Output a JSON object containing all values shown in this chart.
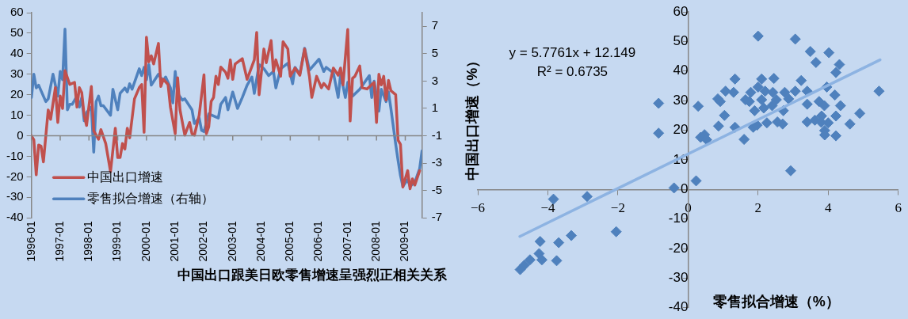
{
  "chart_data": [
    {
      "type": "line",
      "title": "中国出口跟美日欧零售增速呈强烈正相关关系",
      "xlim": [
        "1996-01",
        "2009-08"
      ],
      "xticks": [
        "1996-01",
        "1997-01",
        "1998-01",
        "1999-01",
        "2000-01",
        "2001-01",
        "2002-01",
        "2003-01",
        "2004-01",
        "2005-01",
        "2006-01",
        "2007-01",
        "2008-01",
        "2009-01"
      ],
      "ylim": [
        -40,
        60
      ],
      "yticks": [
        -40,
        -30,
        -20,
        -10,
        0,
        10,
        20,
        30,
        40,
        50,
        60
      ],
      "y2lim": [
        -7,
        8
      ],
      "y2ticks": [
        -7,
        -5,
        -3,
        -1,
        1,
        3,
        5,
        7
      ],
      "grid": false,
      "ref_lines": [
        {
          "axis": "y",
          "value": 0,
          "color": "#868686"
        }
      ],
      "legend": "bottom left",
      "marker": "none",
      "line_style": "solid",
      "series": [
        {
          "name": "中国出口增速",
          "color": "#c0504d",
          "x": [
            "1996-01",
            "1996-02",
            "1996-03",
            "1996-04",
            "1996-05",
            "1996-06",
            "1996-08",
            "1996-09",
            "1996-11",
            "1996-12",
            "1997-01",
            "1997-02",
            "1997-03",
            "1997-05",
            "1997-07",
            "1997-08",
            "1997-09",
            "1997-10",
            "1997-11",
            "1997-12",
            "1998-02",
            "1998-03",
            "1998-05",
            "1998-06",
            "1998-08",
            "1998-10",
            "1998-12",
            "1999-01",
            "1999-02",
            "1999-03",
            "1999-04",
            "1999-05",
            "1999-06",
            "1999-08",
            "1999-10",
            "1999-11",
            "1999-12",
            "2000-01",
            "2000-02",
            "2000-03",
            "2000-04",
            "2000-06",
            "2000-07",
            "2000-08",
            "2000-10",
            "2000-11",
            "2001-01",
            "2001-02",
            "2001-03",
            "2001-05",
            "2001-07",
            "2001-08",
            "2001-09",
            "2001-11",
            "2002-01",
            "2002-02",
            "2002-03",
            "2002-04",
            "2002-05",
            "2002-06",
            "2002-07",
            "2002-08",
            "2002-10",
            "2002-11",
            "2002-12",
            "2003-01",
            "2003-02",
            "2003-05",
            "2003-07",
            "2003-10",
            "2003-11",
            "2003-12",
            "2004-02",
            "2004-03",
            "2004-05",
            "2004-06",
            "2004-07",
            "2004-09",
            "2004-10",
            "2004-12",
            "2005-01",
            "2005-03",
            "2005-05",
            "2005-07",
            "2005-09",
            "2005-10",
            "2005-12",
            "2006-02",
            "2006-03",
            "2006-05",
            "2006-07",
            "2006-09",
            "2006-10",
            "2006-11",
            "2007-01",
            "2007-02",
            "2007-03",
            "2007-04",
            "2007-06",
            "2007-07",
            "2007-09",
            "2007-12",
            "2008-01",
            "2008-02",
            "2008-03",
            "2008-04",
            "2008-05",
            "2008-06",
            "2008-07",
            "2008-09",
            "2008-10",
            "2008-11",
            "2008-12",
            "2009-02",
            "2009-03",
            "2009-04",
            "2009-05",
            "2009-07"
          ],
          "values": [
            0,
            -2,
            -19,
            -4.5,
            -5,
            -12.7,
            12.6,
            8,
            23.5,
            6.5,
            19.4,
            13.3,
            31.7,
            25,
            26,
            14,
            23.5,
            21,
            10,
            5,
            24,
            2.4,
            -1.7,
            3,
            -3.8,
            -17.5,
            3.7,
            -10.6,
            -10.6,
            -3.8,
            -6.5,
            3.7,
            -1,
            18,
            23.5,
            25,
            1.7,
            48,
            36,
            39,
            35,
            45,
            24,
            27.6,
            25,
            14,
            1,
            28.3,
            12.6,
            0.3,
            6.5,
            1,
            0.3,
            10,
            29.7,
            1,
            4.4,
            16.7,
            18.7,
            29,
            25,
            33.5,
            31,
            28,
            37,
            27.5,
            35,
            37.6,
            27.5,
            37,
            50.4,
            20,
            42.3,
            35.6,
            46.4,
            31.5,
            37,
            29,
            45.8,
            42.3,
            29,
            33,
            29.5,
            42.3,
            29,
            18.7,
            29,
            23.4,
            25.5,
            22.8,
            33,
            29.5,
            33,
            24.8,
            51.8,
            7.2,
            28,
            29,
            34,
            23.4,
            22.8,
            26,
            6.5,
            30,
            24.8,
            29,
            17.4,
            27,
            22,
            20,
            -2.2,
            -4.2,
            -25,
            -17,
            -25.8,
            -21,
            -24,
            -17
          ]
        },
        {
          "name": "零售拟合增速（右轴）",
          "color": "#4f81bd",
          "axis": "y2",
          "x": [
            "1996-01",
            "1996-02",
            "1996-03",
            "1996-04",
            "1996-07",
            "1996-08",
            "1996-10",
            "1996-12",
            "1997-01",
            "1997-02",
            "1997-03",
            "1997-04",
            "1997-05",
            "1997-06",
            "1997-08",
            "1997-09",
            "1997-10",
            "1997-11",
            "1997-12",
            "1998-02",
            "1998-03",
            "1998-04",
            "1998-05",
            "1998-06",
            "1998-07",
            "1998-10",
            "1998-11",
            "1999-01",
            "1999-02",
            "1999-04",
            "1999-05",
            "1999-06",
            "1999-07",
            "1999-10",
            "1999-11",
            "1999-12",
            "2000-01",
            "2000-02",
            "2000-03",
            "2000-06",
            "2000-08",
            "2000-09",
            "2000-11",
            "2000-12",
            "2001-01",
            "2001-02",
            "2001-04",
            "2001-05",
            "2001-08",
            "2001-09",
            "2001-11",
            "2001-12",
            "2002-01",
            "2002-03",
            "2002-07",
            "2002-08",
            "2002-10",
            "2002-11",
            "2003-01",
            "2003-03",
            "2003-05",
            "2003-07",
            "2003-09",
            "2003-10",
            "2003-12",
            "2004-02",
            "2004-04",
            "2004-06",
            "2004-07",
            "2004-09",
            "2004-12",
            "2005-02",
            "2005-03",
            "2005-05",
            "2005-07",
            "2005-09",
            "2006-01",
            "2006-03",
            "2006-04",
            "2006-07",
            "2006-09",
            "2006-10",
            "2006-12",
            "2007-01",
            "2007-03",
            "2007-06",
            "2007-10",
            "2007-11",
            "2007-12",
            "2008-02",
            "2008-03",
            "2008-05",
            "2008-06",
            "2008-07",
            "2008-09",
            "2008-10",
            "2008-11",
            "2008-12",
            "2009-02",
            "2009-03",
            "2009-05",
            "2009-06",
            "2009-07",
            "2009-08"
          ],
          "values": [
            1.8,
            3.5,
            2.5,
            2.7,
            1.5,
            1.7,
            3.5,
            1.9,
            3.7,
            3.1,
            6.8,
            0.9,
            1.3,
            1.3,
            1.9,
            1.1,
            1.8,
            0.1,
            0.7,
            1.1,
            -2.2,
            1.5,
            1.9,
            1.2,
            1.2,
            0.5,
            2.4,
            0.9,
            2.1,
            2.5,
            2.2,
            2.8,
            2.4,
            3.9,
            3.4,
            4,
            3.1,
            4.2,
            2.7,
            3.5,
            3,
            3.3,
            2.5,
            1.4,
            3.7,
            2.1,
            1.6,
            1.7,
            0.9,
            -0.1,
            0.3,
            -0.6,
            -0.7,
            0.6,
            0.3,
            1.3,
            1.8,
            0.9,
            2.2,
            1,
            1.8,
            2.7,
            3.3,
            2.1,
            4.2,
            3.9,
            3.4,
            3.7,
            2.5,
            3.9,
            4.3,
            2.8,
            4,
            3.5,
            5.4,
            3.8,
            4.6,
            3.7,
            4,
            3.6,
            1.8,
            3.5,
            1.8,
            2.9,
            1.9,
            2.4,
            3.4,
            1.8,
            3,
            0.8,
            2.4,
            1.5,
            2.2,
            1,
            -1.6,
            -2.8,
            -3.9,
            -4.7,
            -4.2,
            -4.7,
            -4.4,
            -3.9,
            -3.4,
            -2.1
          ]
        }
      ]
    },
    {
      "type": "scatter",
      "xlabel": "零售拟合增速（%）",
      "ylabel": "中国出口增速（%）",
      "annotations": [
        "y = 5.7761x + 12.149",
        "R² = 0.6735"
      ],
      "xlim": [
        -6,
        6
      ],
      "xticks": [
        {
          "value": -6,
          "label": "−6"
        },
        {
          "value": -4,
          "label": "−4"
        },
        {
          "value": -2,
          "label": "−2"
        },
        0,
        2,
        4,
        6
      ],
      "ylim": [
        -40,
        60
      ],
      "yticks": [
        -40,
        -30,
        -20,
        -10,
        0,
        10,
        20,
        30,
        40,
        50,
        60
      ],
      "grid": false,
      "series": [
        {
          "color": "#4f81bd",
          "marker": "diamond",
          "x": [
            -0.84,
            -0.84,
            -0.4,
            -3.84,
            -2.88,
            -2.05,
            -3.33,
            -3.69,
            -4.22,
            -4.25,
            -4.17,
            -4.51,
            -3.75,
            -4.67,
            -4.79,
            0.23,
            0.29,
            0.36,
            0.47,
            0.53,
            0.87,
            0.85,
            0.92,
            1.04,
            1.07,
            1.3,
            1.34,
            1.34,
            1.6,
            1.64,
            1.75,
            1.79,
            1.9,
            1.86,
            1.97,
            2.0,
            2.0,
            2.1,
            2.1,
            2.16,
            2.25,
            2.2,
            2.4,
            2.45,
            2.42,
            2.52,
            2.55,
            2.7,
            2.72,
            2.76,
            2.87,
            2.93,
            3.06,
            3.06,
            3.23,
            3.4,
            3.4,
            3.4,
            3.49,
            3.65,
            3.62,
            3.74,
            3.81,
            3.8,
            3.89,
            3.9,
            3.9,
            3.96,
            4.0,
            4.02,
            4.19,
            4.22,
            4.22,
            4.32,
            4.35,
            4.22,
            4.62,
            4.9,
            5.45
          ],
          "values": [
            29.1,
            19,
            0.5,
            -3.3,
            -2.4,
            -14.3,
            -15.6,
            -18,
            -17.6,
            -21.7,
            -23.8,
            -23.8,
            -24.1,
            -25.6,
            -27.1,
            2.9,
            28.1,
            17.6,
            18.5,
            16.8,
            21.4,
            30.6,
            29.7,
            25,
            33.2,
            32.8,
            37.3,
            21,
            16.9,
            30.3,
            29.7,
            32.8,
            26.6,
            21,
            21.7,
            51.8,
            34.6,
            30.3,
            37.3,
            27.5,
            22.5,
            33.2,
            28.3,
            37.5,
            32.8,
            30.3,
            22.8,
            22.1,
            26.6,
            32.8,
            30.6,
            6.3,
            50.8,
            33.2,
            36.8,
            33.2,
            28.8,
            22.8,
            46.6,
            42.9,
            23.4,
            29.7,
            24.8,
            22.7,
            28.3,
            19.9,
            18.4,
            34.6,
            22.5,
            46.2,
            31.9,
            24.8,
            39.5,
            42.2,
            28.3,
            18.1,
            22.1,
            25.7,
            33.2
          ]
        },
        {
          "type": "line",
          "color": "#8db3e2",
          "marker": "none",
          "x": [
            -4.8,
            5.48
          ],
          "values": [
            -15.9,
            43.8
          ]
        }
      ]
    }
  ]
}
